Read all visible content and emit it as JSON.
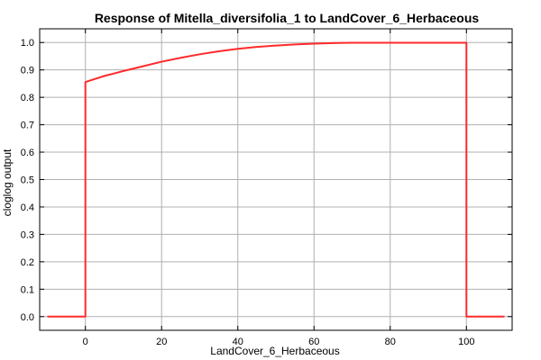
{
  "chart_data": {
    "type": "line",
    "title": "Response of Mitella_diversifolia_1 to LandCover_6_Herbaceous",
    "xlabel": "LandCover_6_Herbaceous",
    "ylabel": "cloglog output",
    "xlim": [
      -12,
      112
    ],
    "ylim": [
      -0.05,
      1.05
    ],
    "xticks": [
      0,
      20,
      40,
      60,
      80,
      100
    ],
    "yticks": [
      0.0,
      0.1,
      0.2,
      0.3,
      0.4,
      0.5,
      0.6,
      0.7,
      0.8,
      0.9,
      1.0
    ],
    "ytick_labels": [
      "0.0",
      "0.1",
      "0.2",
      "0.3",
      "0.4",
      "0.5",
      "0.6",
      "0.7",
      "0.8",
      "0.9",
      "1.0"
    ],
    "grid": true,
    "colors": {
      "line": "#ff2a2a"
    },
    "series": [
      {
        "x": [
          -10,
          0,
          0,
          0.5,
          5,
          10,
          15,
          20,
          25,
          30,
          35,
          40,
          45,
          50,
          55,
          60,
          65,
          70,
          80,
          90,
          100,
          100,
          110
        ],
        "y": [
          0.0,
          0.0,
          0.855,
          0.858,
          0.878,
          0.896,
          0.913,
          0.93,
          0.944,
          0.957,
          0.968,
          0.977,
          0.984,
          0.989,
          0.993,
          0.996,
          0.998,
          0.999,
          0.999,
          0.999,
          0.999,
          0.0,
          0.0
        ]
      }
    ]
  }
}
